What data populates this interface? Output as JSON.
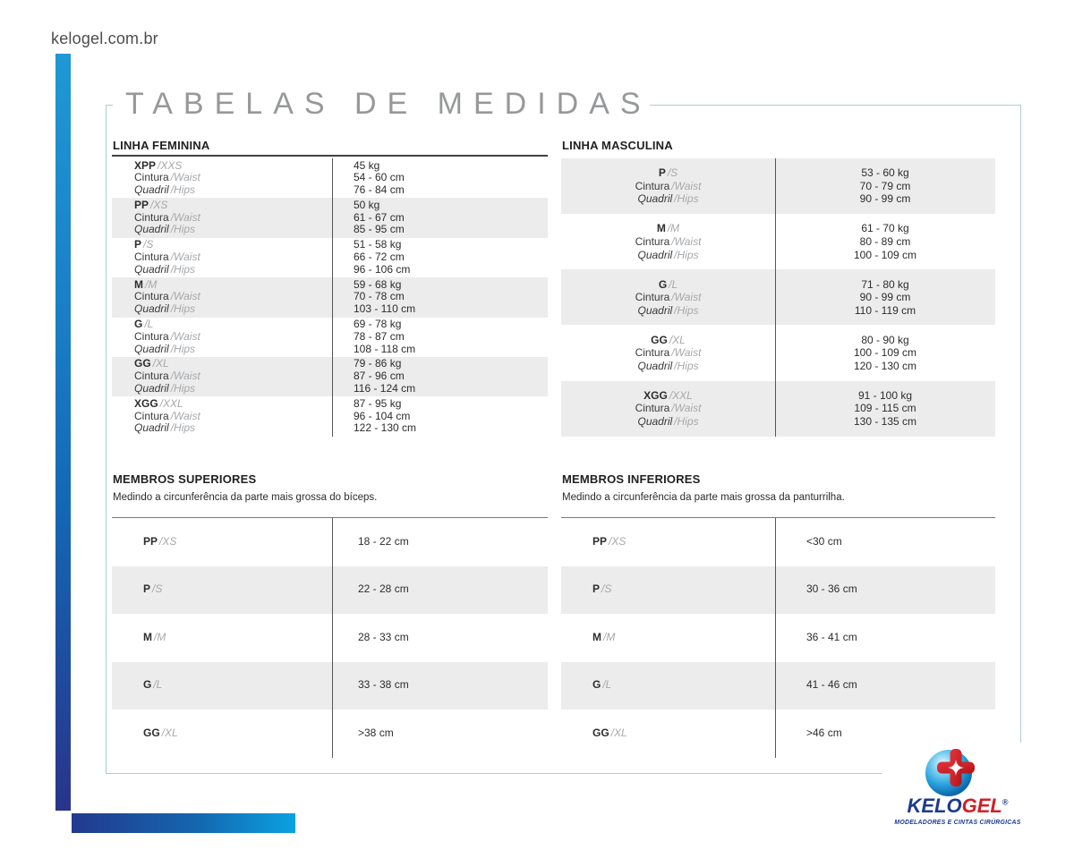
{
  "page": {
    "site_url": "kelogel.com.br",
    "title": "TABELAS DE MEDIDAS"
  },
  "labels": {
    "waist": "Cintura",
    "waist_alt": "/Waist",
    "hips": "Quadril",
    "hips_alt": "/Hips"
  },
  "tables": {
    "feminina": {
      "title": "LINHA FEMININA",
      "rows": [
        {
          "size": "XPP",
          "size_alt": "/XXS",
          "values": [
            "45 kg",
            "54 - 60 cm",
            "76 - 84 cm"
          ]
        },
        {
          "size": "PP",
          "size_alt": "/XS",
          "values": [
            "50 kg",
            "61 - 67 cm",
            "85 - 95 cm"
          ]
        },
        {
          "size": "P",
          "size_alt": "/S",
          "values": [
            "51 - 58 kg",
            "66 - 72 cm",
            "96 - 106 cm"
          ]
        },
        {
          "size": "M",
          "size_alt": "/M",
          "values": [
            "59 - 68 kg",
            "70 - 78 cm",
            "103 - 110 cm"
          ]
        },
        {
          "size": "G",
          "size_alt": "/L",
          "values": [
            "69 - 78 kg",
            "78 - 87 cm",
            "108 - 118 cm"
          ]
        },
        {
          "size": "GG",
          "size_alt": "/XL",
          "values": [
            "79 - 86 kg",
            "87 - 96 cm",
            "116 - 124 cm"
          ]
        },
        {
          "size": "XGG",
          "size_alt": "/XXL",
          "values": [
            "87 - 95 kg",
            "96 - 104 cm",
            "122 - 130 cm"
          ]
        }
      ]
    },
    "masculina": {
      "title": "LINHA MASCULINA",
      "rows": [
        {
          "size": "P",
          "size_alt": "/S",
          "values": [
            "53 - 60 kg",
            "70 - 79 cm",
            "90 - 99 cm"
          ]
        },
        {
          "size": "M",
          "size_alt": "/M",
          "values": [
            "61 - 70 kg",
            "80 - 89 cm",
            "100 - 109 cm"
          ]
        },
        {
          "size": "G",
          "size_alt": "/L",
          "values": [
            "71 - 80 kg",
            "90 - 99 cm",
            "110 - 119 cm"
          ]
        },
        {
          "size": "GG",
          "size_alt": "/XL",
          "values": [
            "80 - 90 kg",
            "100 - 109 cm",
            "120 - 130 cm"
          ]
        },
        {
          "size": "XGG",
          "size_alt": "/XXL",
          "values": [
            "91 - 100 kg",
            "109 - 115 cm",
            "130 - 135 cm"
          ]
        }
      ]
    },
    "superiores": {
      "title": "MEMBROS SUPERIORES",
      "description": "Medindo a circunferência da parte mais grossa do bíceps.",
      "rows": [
        {
          "size": "PP",
          "size_alt": "/XS",
          "value": "18 - 22 cm"
        },
        {
          "size": "P",
          "size_alt": "/S",
          "value": "22 - 28 cm"
        },
        {
          "size": "M",
          "size_alt": "/M",
          "value": "28 - 33 cm"
        },
        {
          "size": "G",
          "size_alt": "/L",
          "value": "33 - 38 cm"
        },
        {
          "size": "GG",
          "size_alt": "/XL",
          "value": ">38 cm"
        }
      ]
    },
    "inferiores": {
      "title": "MEMBROS INFERIORES",
      "description": "Medindo a circunferência da parte mais grossa da panturrilha.",
      "rows": [
        {
          "size": "PP",
          "size_alt": "/XS",
          "value": "<30 cm"
        },
        {
          "size": "P",
          "size_alt": "/S",
          "value": "30 - 36 cm"
        },
        {
          "size": "M",
          "size_alt": "/M",
          "value": "36 - 41 cm"
        },
        {
          "size": "G",
          "size_alt": "/L",
          "value": "41 - 46 cm"
        },
        {
          "size": "GG",
          "size_alt": "/XL",
          "value": ">46 cm"
        }
      ]
    }
  },
  "logo": {
    "brand_part1": "KELO",
    "brand_part2": "GEL",
    "registered": "®",
    "tagline": "MODELADORES E CINTAS CIRÚRGICAS"
  },
  "colors": {
    "accent_blue_light": "#1f98d5",
    "accent_blue_dark": "#29338b",
    "brand_navy": "#1b3a90",
    "brand_red": "#d01f27",
    "row_gray": "#ececec",
    "frame_teal": "#aecdd1"
  }
}
